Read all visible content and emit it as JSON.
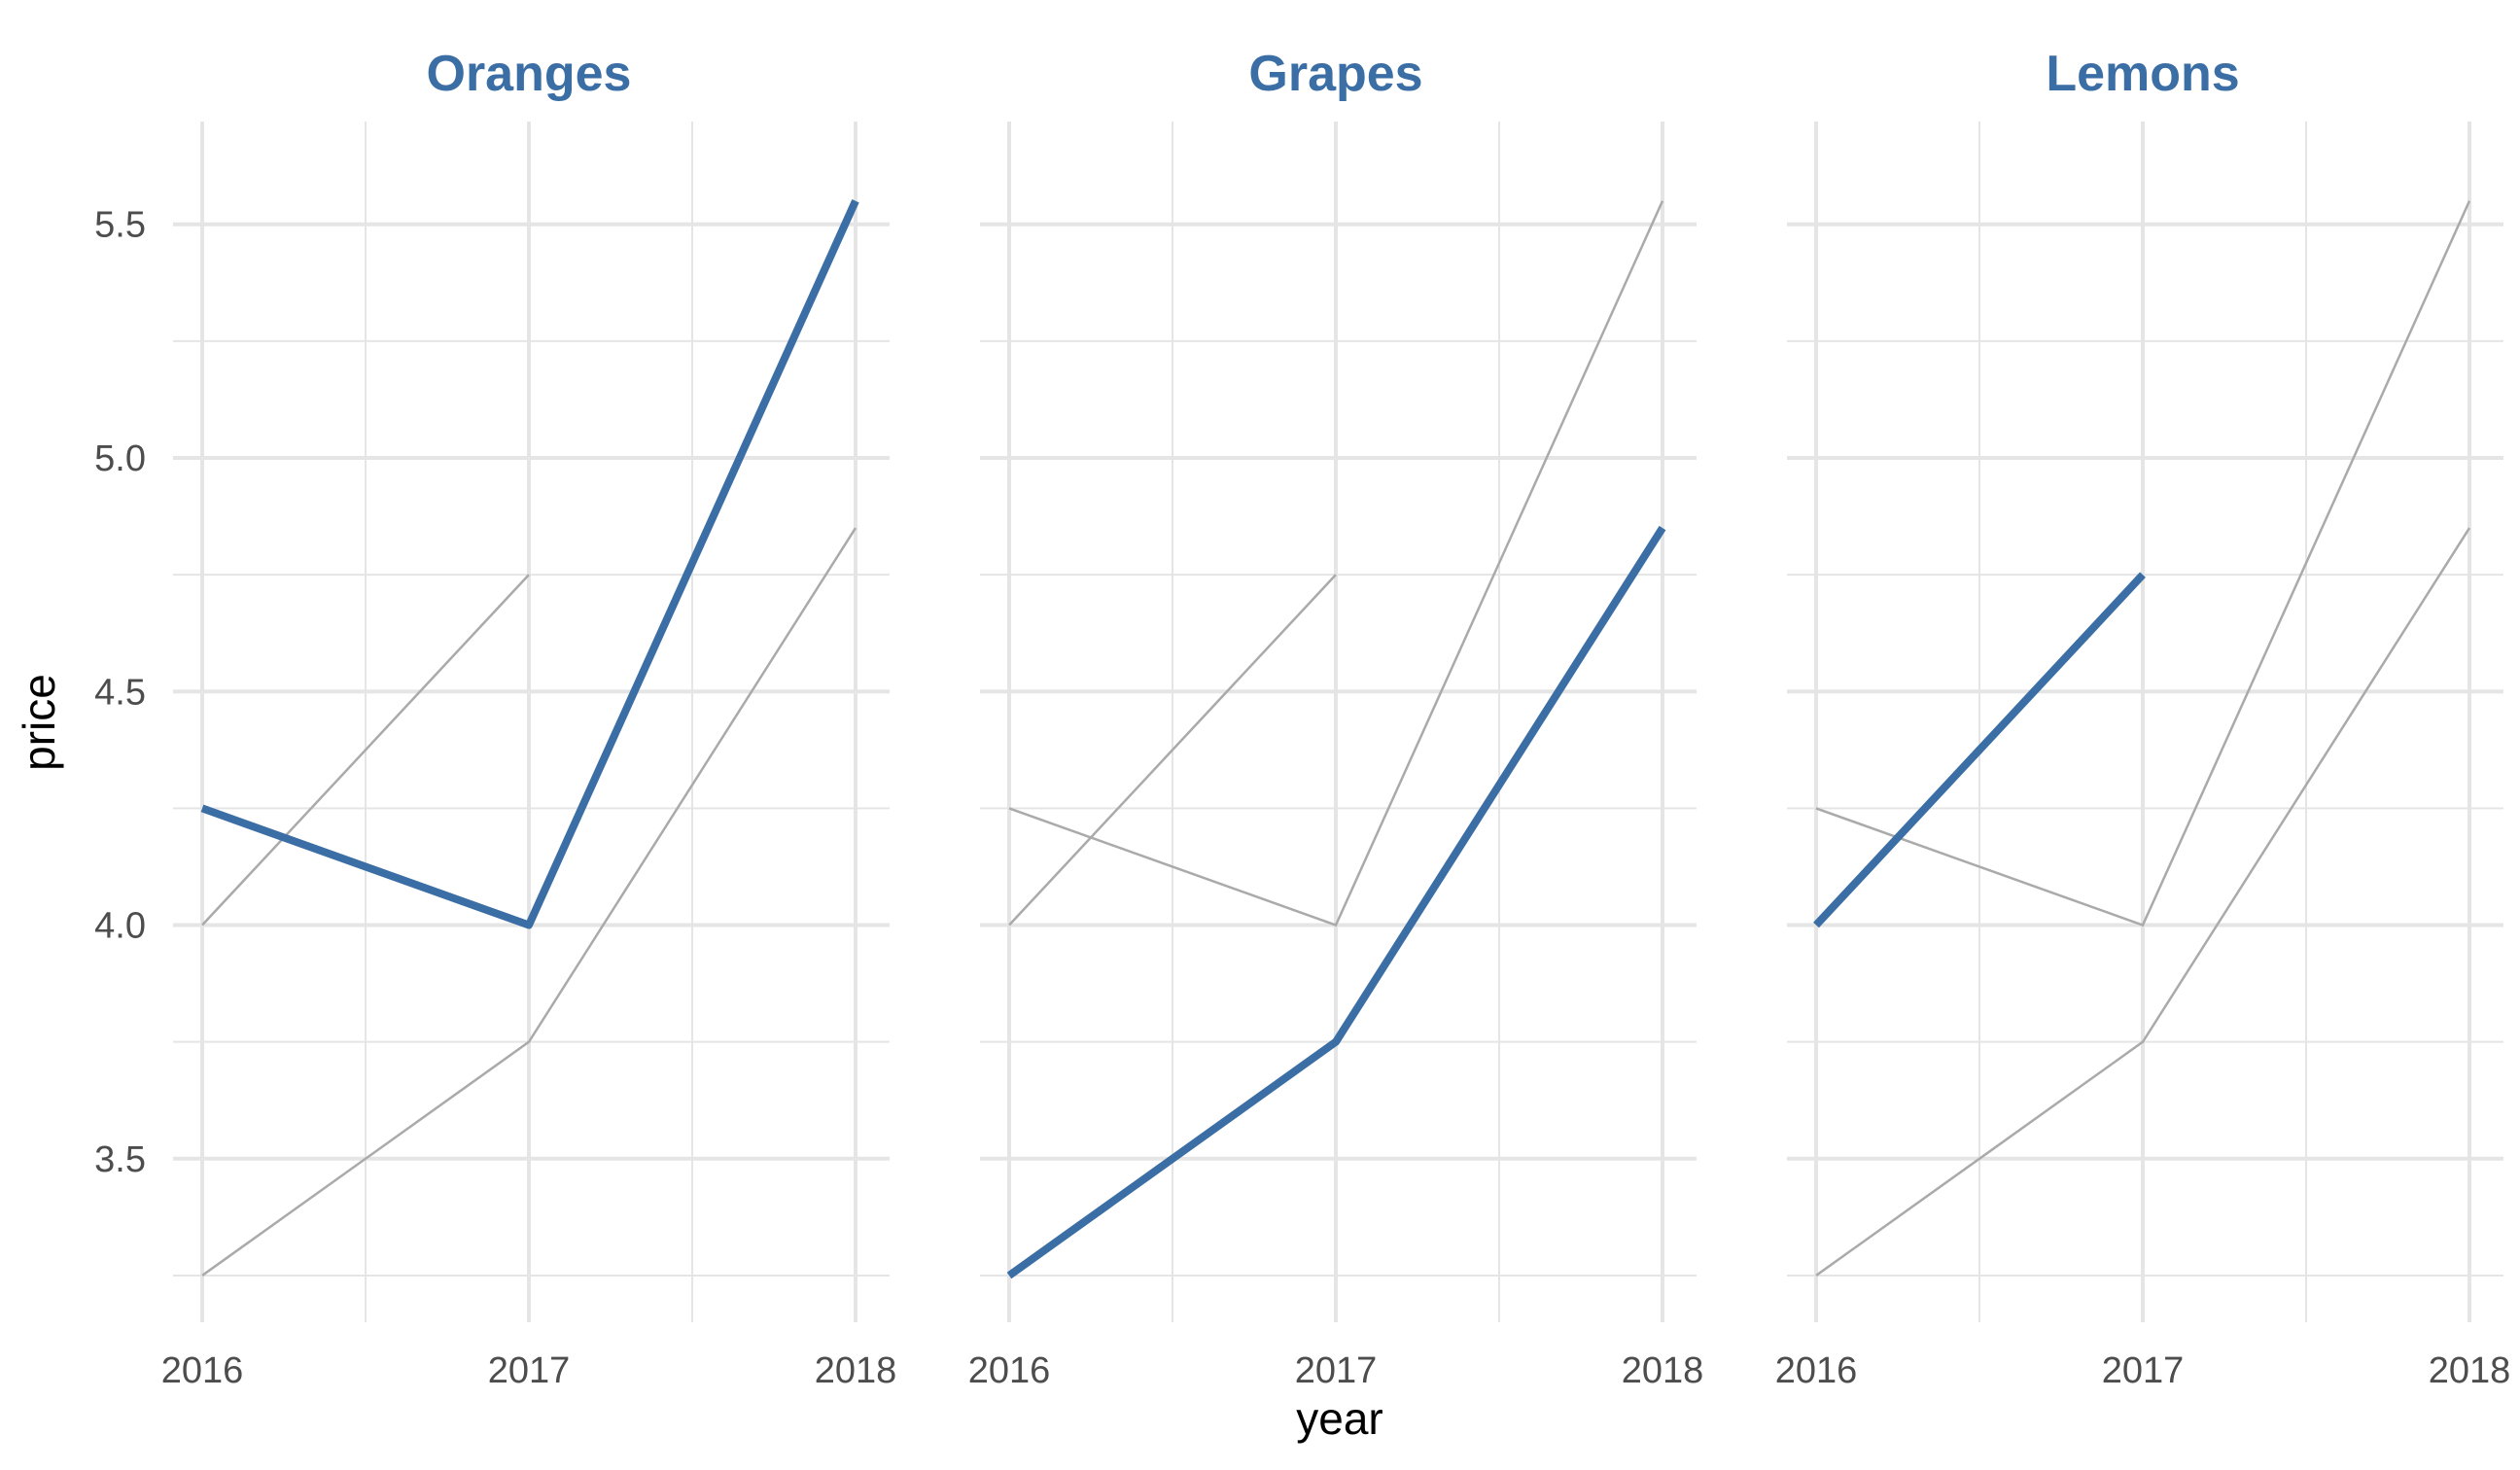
{
  "chart_data": {
    "type": "line",
    "facet_by": "fruit",
    "highlight_color": "#3a6ea5",
    "background_line_color": "#aaaaaa",
    "grid_color": "#e5e5e5",
    "xlabel": "year",
    "ylabel": "price",
    "x": [
      2016,
      2017,
      2018
    ],
    "x_tick_labels": [
      "2016",
      "2017",
      "2018"
    ],
    "y_ticks": [
      3.5,
      4.0,
      4.5,
      5.0,
      5.5
    ],
    "y_tick_labels": [
      "3.5",
      "4.0",
      "4.5",
      "5.0",
      "5.5"
    ],
    "ylim": [
      3.15,
      5.72
    ],
    "xlim": [
      2016,
      2018
    ],
    "grid": true,
    "legend": "none",
    "series": [
      {
        "name": "Oranges",
        "values": [
          4.25,
          4.0,
          5.55
        ]
      },
      {
        "name": "Grapes",
        "values": [
          3.25,
          3.75,
          4.85
        ]
      },
      {
        "name": "Lemons",
        "values": [
          4.0,
          4.75,
          null
        ]
      }
    ],
    "panels": [
      "Oranges",
      "Grapes",
      "Lemons"
    ]
  }
}
